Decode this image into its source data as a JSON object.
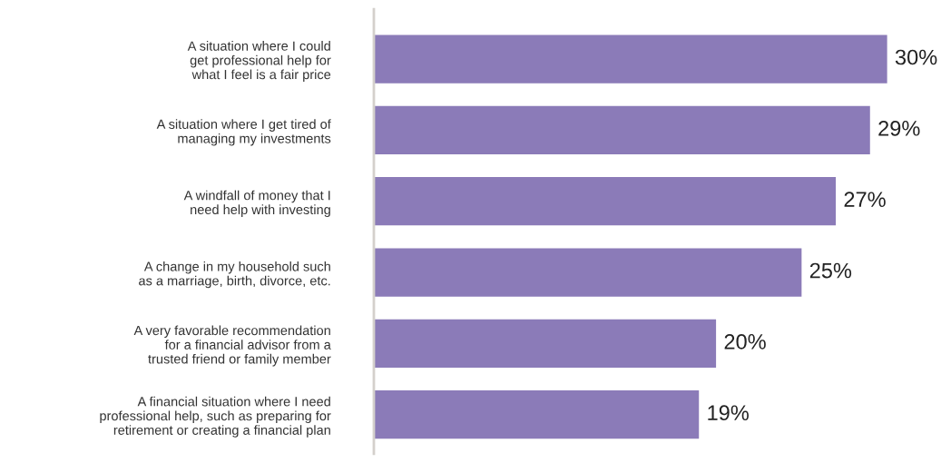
{
  "chart_data": {
    "type": "bar",
    "orientation": "horizontal",
    "categories": [
      "A situation where I could\nget professional help for\nwhat I feel is a fair price",
      "A situation where I get tired of\nmanaging my investments",
      "A windfall of money that I\nneed help with investing",
      "A change in my household such\nas a marriage, birth, divorce, etc.",
      "A very favorable recommendation\nfor a financial advisor from a\ntrusted friend or family member",
      "A financial situation where I need\nprofessional help, such as preparing for\nretirement or creating a financial plan"
    ],
    "values": [
      30,
      29,
      27,
      25,
      20,
      19
    ],
    "value_labels": [
      "30%",
      "29%",
      "27%",
      "25%",
      "20%",
      "19%"
    ],
    "color": "#8b7bb8"
  }
}
